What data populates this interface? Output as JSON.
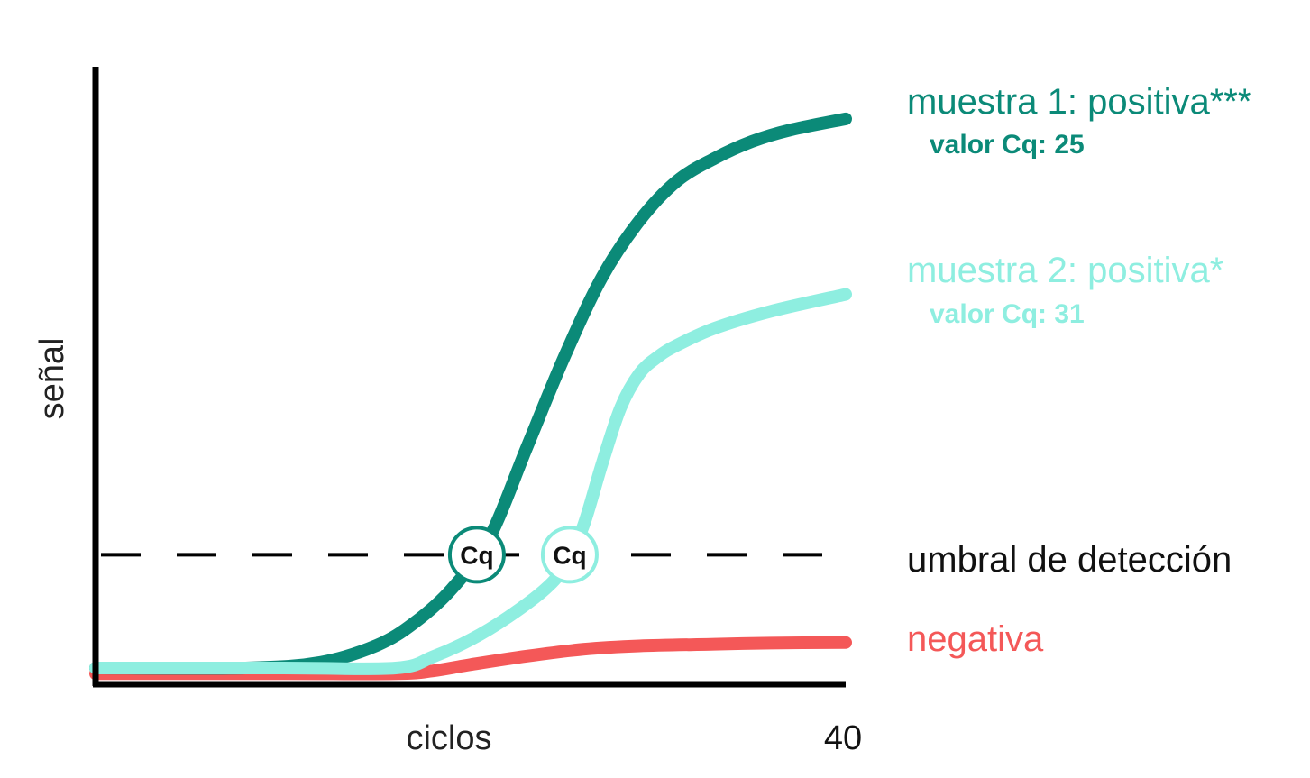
{
  "chart_data": {
    "type": "line",
    "xlabel": "ciclos",
    "ylabel": "señal",
    "x_ticks": [
      "40"
    ],
    "xlim": [
      0,
      40
    ],
    "threshold": {
      "label": "umbral de detección",
      "y": 0.2
    },
    "cq_marker_label": "Cq",
    "series": [
      {
        "name": "muestra 1: positiva***",
        "sublabel": "valor Cq: 25",
        "color": "#0b8a78",
        "cq": 25,
        "x": [
          0,
          8,
          12,
          15,
          17,
          19,
          21,
          23,
          25,
          27,
          29,
          31,
          33,
          35,
          37,
          40
        ],
        "y": [
          0.0,
          0.0,
          0.01,
          0.04,
          0.08,
          0.14,
          0.23,
          0.39,
          0.55,
          0.69,
          0.79,
          0.86,
          0.9,
          0.93,
          0.95,
          0.97
        ]
      },
      {
        "name": "muestra 2: positiva*",
        "sublabel": "valor Cq: 31",
        "color": "#8eeee0",
        "cq": 31,
        "x": [
          0,
          10,
          16,
          18,
          20,
          22,
          24,
          25,
          26,
          27,
          28,
          29,
          30,
          31,
          33,
          36,
          40
        ],
        "y": [
          0.0,
          0.0,
          0.0,
          0.02,
          0.05,
          0.09,
          0.14,
          0.18,
          0.25,
          0.36,
          0.46,
          0.52,
          0.55,
          0.57,
          0.6,
          0.63,
          0.66
        ]
      },
      {
        "name": "negativa",
        "color": "#f45858",
        "x": [
          0,
          10,
          16,
          18,
          20,
          23,
          26,
          29,
          33,
          36,
          40
        ],
        "y": [
          -0.01,
          -0.01,
          -0.01,
          -0.005,
          0.006,
          0.021,
          0.033,
          0.039,
          0.042,
          0.044,
          0.045
        ]
      }
    ]
  }
}
